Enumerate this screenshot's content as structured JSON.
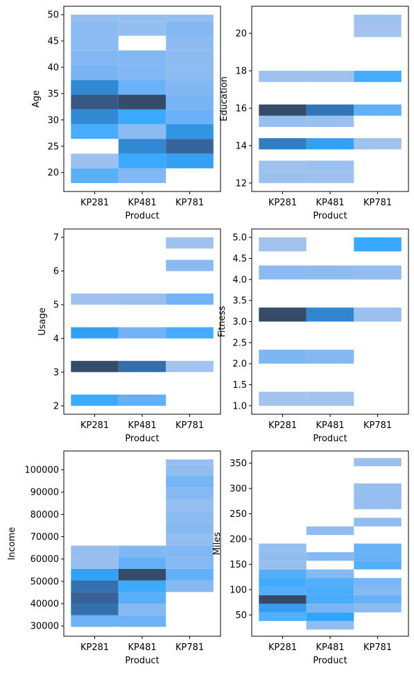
{
  "figure": {
    "xlabel": "Product",
    "categories": [
      "KP281",
      "KP481",
      "KP781"
    ]
  },
  "chart_data": [
    {
      "type": "heatmap",
      "title": "",
      "xlabel": "Product",
      "ylabel": "Age",
      "categories": [
        "KP281",
        "KP481",
        "KP781"
      ],
      "ylim": [
        16.4,
        51.6
      ],
      "yticks": [
        20,
        25,
        30,
        35,
        40,
        45,
        50
      ],
      "ytick_labels": [
        "20",
        "25",
        "30",
        "35",
        "40",
        "45",
        "50"
      ],
      "bin_edges": [
        18,
        20.8,
        23.6,
        26.4,
        29.2,
        32,
        34.8,
        37.6,
        40.4,
        43.2,
        46,
        48.8,
        50
      ],
      "counts": [
        [
          7,
          1,
          0,
          8,
          12,
          16,
          12,
          5,
          4,
          3,
          3,
          2
        ],
        [
          4,
          9,
          12,
          3,
          9,
          17,
          6,
          4,
          4,
          0,
          2,
          2
        ],
        [
          0,
          10,
          15,
          11,
          6,
          5,
          4,
          3,
          3,
          3,
          4,
          2
        ]
      ]
    },
    {
      "type": "heatmap",
      "title": "",
      "xlabel": "Product",
      "ylabel": "Education",
      "categories": [
        "KP281",
        "KP481",
        "KP781"
      ],
      "ylim": [
        11.55,
        21.45
      ],
      "yticks": [
        12,
        14,
        16,
        18,
        20
      ],
      "ytick_labels": [
        "12",
        "14",
        "16",
        "18",
        "20"
      ],
      "bin_edges": [
        12,
        12.6,
        13.2,
        13.8,
        14.4,
        15,
        15.6,
        16.2,
        16.8,
        17.4,
        18,
        18.6,
        19.2,
        19.8,
        20.4,
        21
      ],
      "counts": [
        [
          3,
          2,
          0,
          30,
          0,
          4,
          39,
          0,
          0,
          2,
          0,
          0,
          0,
          0,
          0
        ],
        [
          2,
          3,
          0,
          23,
          0,
          3,
          31,
          0,
          0,
          2,
          0,
          0,
          0,
          0,
          0
        ],
        [
          0,
          0,
          0,
          2,
          0,
          0,
          15,
          0,
          0,
          19,
          0,
          0,
          0,
          1,
          2
        ]
      ]
    },
    {
      "type": "heatmap",
      "title": "",
      "xlabel": "Product",
      "ylabel": "Usage",
      "categories": [
        "KP281",
        "KP481",
        "KP781"
      ],
      "ylim": [
        1.75,
        7.25
      ],
      "yticks": [
        2,
        3,
        4,
        5,
        6,
        7
      ],
      "ytick_labels": [
        "2",
        "3",
        "4",
        "5",
        "6",
        "7"
      ],
      "bin_edges": [
        2,
        2.333,
        2.667,
        3,
        3.333,
        3.667,
        4,
        4.333,
        4.667,
        5,
        5.333,
        5.667,
        6,
        6.333,
        6.667,
        7
      ],
      "counts": [
        [
          19,
          0,
          0,
          37,
          0,
          0,
          22,
          0,
          0,
          2,
          0,
          0,
          0,
          0,
          0
        ],
        [
          14,
          0,
          0,
          31,
          0,
          0,
          12,
          0,
          0,
          3,
          0,
          0,
          0,
          0,
          0
        ],
        [
          0,
          0,
          0,
          1,
          0,
          0,
          18,
          0,
          0,
          12,
          0,
          0,
          7,
          0,
          2
        ]
      ]
    },
    {
      "type": "heatmap",
      "title": "",
      "xlabel": "Product",
      "ylabel": "Fitness",
      "categories": [
        "KP281",
        "KP481",
        "KP781"
      ],
      "ylim": [
        0.8,
        5.2
      ],
      "yticks": [
        1.0,
        1.5,
        2.0,
        2.5,
        3.0,
        3.5,
        4.0,
        4.5,
        5.0
      ],
      "ytick_labels": [
        "1.0",
        "1.5",
        "2.0",
        "2.5",
        "3.0",
        "3.5",
        "4.0",
        "4.5",
        "5.0"
      ],
      "bin_edges": [
        1,
        1.333,
        1.667,
        2,
        2.333,
        2.667,
        3,
        3.333,
        3.667,
        4,
        4.333,
        4.667,
        5
      ],
      "counts": [
        [
          1,
          0,
          0,
          14,
          0,
          0,
          54,
          0,
          0,
          9,
          0,
          2
        ],
        [
          1,
          0,
          0,
          12,
          0,
          0,
          39,
          0,
          0,
          8,
          0,
          0
        ],
        [
          0,
          0,
          0,
          0,
          0,
          0,
          4,
          0,
          0,
          7,
          0,
          29
        ]
      ]
    },
    {
      "type": "heatmap",
      "title": "",
      "xlabel": "Product",
      "ylabel": "Income",
      "categories": [
        "KP281",
        "KP481",
        "KP781"
      ],
      "ylim": [
        25400,
        108400
      ],
      "yticks": [
        30000,
        40000,
        50000,
        60000,
        70000,
        80000,
        90000,
        100000
      ],
      "ytick_labels": [
        "30000",
        "40000",
        "50000",
        "60000",
        "70000",
        "80000",
        "90000",
        "100000"
      ],
      "bin_edges": [
        29600,
        34800,
        40000,
        45200,
        50400,
        55600,
        60800,
        66000,
        71200,
        76400,
        81600,
        86800,
        92000,
        97200,
        102400,
        104600
      ],
      "counts": [
        [
          10,
          24,
          26,
          24,
          17,
          3,
          3,
          0,
          0,
          0,
          0,
          0,
          0,
          0,
          0
        ],
        [
          10,
          6,
          12,
          15,
          29,
          11,
          7,
          0,
          0,
          0,
          0,
          0,
          0,
          0,
          0
        ],
        [
          0,
          0,
          0,
          6,
          11,
          6,
          7,
          4,
          6,
          5,
          3,
          6,
          9,
          4,
          3
        ]
      ]
    },
    {
      "type": "heatmap",
      "title": "",
      "xlabel": "Product",
      "ylabel": "Miles",
      "categories": [
        "KP281",
        "KP481",
        "KP781"
      ],
      "ylim": [
        7.9,
        374.1
      ],
      "yticks": [
        50,
        100,
        150,
        200,
        250,
        300,
        350
      ],
      "ytick_labels": [
        "50",
        "100",
        "150",
        "200",
        "250",
        "300",
        "350"
      ],
      "bin_edges": [
        21,
        38,
        55,
        72,
        89,
        106,
        123,
        140,
        157,
        174,
        191,
        208,
        225,
        242,
        259,
        276,
        293,
        310,
        327,
        344,
        360
      ],
      "counts": [
        [
          0,
          12,
          17,
          28,
          12,
          14,
          12,
          3,
          4,
          3,
          0,
          0,
          0,
          0,
          0,
          0,
          0,
          0,
          0,
          0
        ],
        [
          4,
          16,
          8,
          13,
          13,
          12,
          6,
          0,
          6,
          0,
          0,
          4,
          0,
          0,
          0,
          0,
          0,
          0,
          0,
          0
        ],
        [
          0,
          0,
          5,
          10,
          6,
          8,
          0,
          12,
          10,
          10,
          0,
          0,
          4,
          0,
          3,
          3,
          3,
          0,
          0,
          2
        ]
      ]
    }
  ]
}
